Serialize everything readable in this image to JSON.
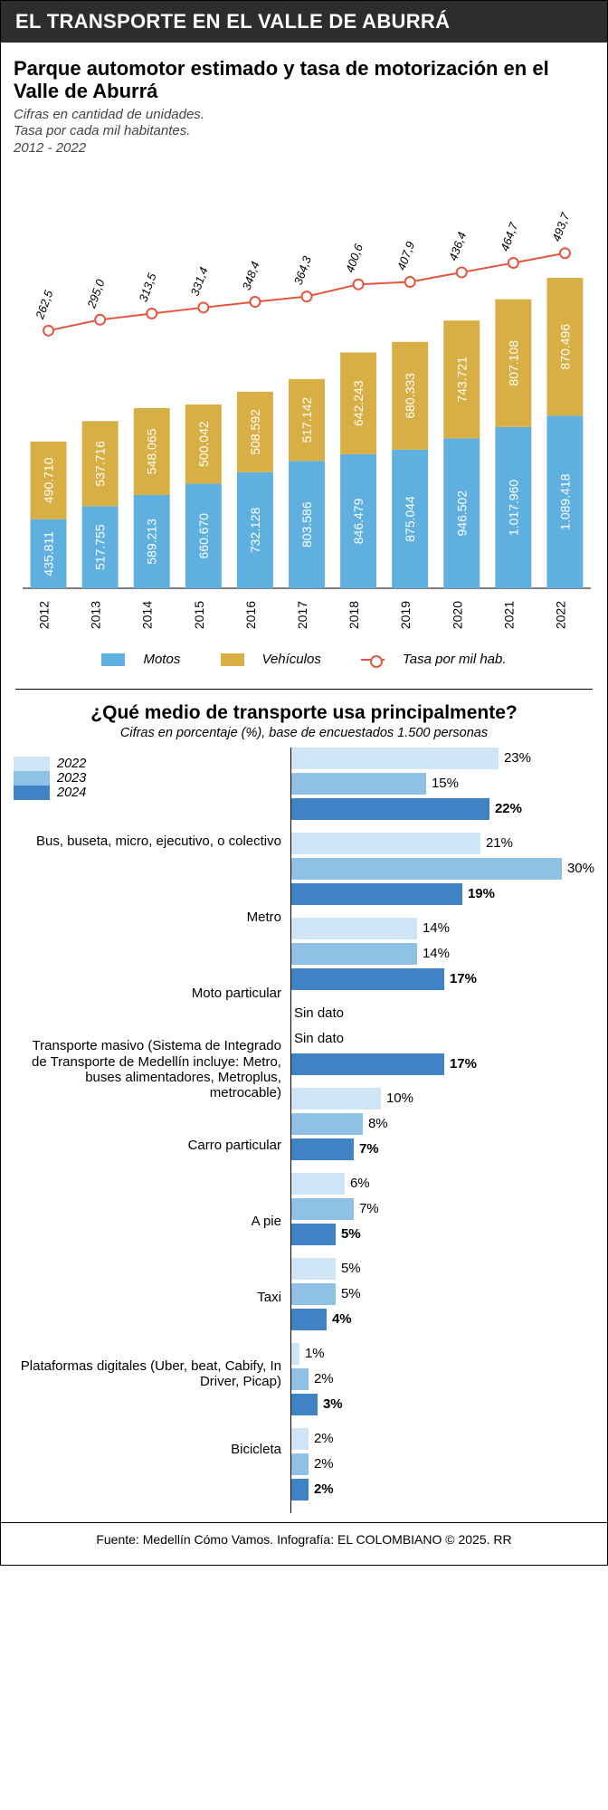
{
  "header": "EL TRANSPORTE EN EL VALLE DE ABURRÁ",
  "chart1": {
    "type": "stacked-bar-plus-line",
    "title": "Parque automotor estimado y tasa de motorización en el Valle de Aburrá",
    "subtitle": "Cifras en cantidad de unidades.\nTasa por cada mil habitantes.\n2012 - 2022",
    "years": [
      "2012",
      "2013",
      "2014",
      "2015",
      "2016",
      "2017",
      "2018",
      "2019",
      "2020",
      "2021",
      "2022"
    ],
    "motos": [
      435811,
      517755,
      589213,
      660670,
      732128,
      803586,
      846479,
      875044,
      946502,
      1017960,
      1089418
    ],
    "motos_label": [
      "435.811",
      "517.755",
      "589.213",
      "660.670",
      "732.128",
      "803.586",
      "846.479",
      "875.044",
      "946.502",
      "1.017.960",
      "1.089.418"
    ],
    "vehiculos": [
      490710,
      537716,
      548065,
      500042,
      508592,
      517142,
      642243,
      680333,
      743721,
      807108,
      870496
    ],
    "vehiculos_label": [
      "490.710",
      "537.716",
      "548.065",
      "500.042",
      "508.592",
      "517.142",
      "642.243",
      "680.333",
      "743.721",
      "807.108",
      "870.496"
    ],
    "tasa": [
      262.5,
      295.0,
      313.5,
      331.4,
      348.4,
      364.3,
      400.6,
      407.9,
      436.4,
      464.7,
      493.7
    ],
    "tasa_label": [
      "262,5",
      "295,0",
      "313,5",
      "331,4",
      "348,4",
      "364,3",
      "400,6",
      "407,9",
      "436,4",
      "464,7",
      "493,7"
    ],
    "y_max_total": 2000000,
    "tasa_max": 520,
    "colors": {
      "motos": "#5fb0df",
      "vehiculos": "#d8af45",
      "line": "#e8553e",
      "marker_fill": "#ffffff"
    },
    "legend": {
      "motos": "Motos",
      "vehiculos": "Vehículos",
      "line": "Tasa por mil hab."
    },
    "label_fontsize": 12,
    "axis_fontsize": 14
  },
  "chart2": {
    "type": "grouped-horizontal-bar",
    "title": "¿Qué medio de transporte usa principalmente?",
    "subtitle": "Cifras en porcentaje (%), base de encuestados 1.500 personas",
    "years": [
      "2022",
      "2023",
      "2024"
    ],
    "year_colors": [
      "#cfe5f5",
      "#8fc0e6",
      "#3f83c4"
    ],
    "x_max": 30,
    "categories": [
      {
        "label": "Bus, buseta, micro, ejecutivo, o colectivo",
        "values": [
          23,
          15,
          22
        ],
        "labels": [
          "23%",
          "15%",
          "22%"
        ]
      },
      {
        "label": "Metro",
        "values": [
          21,
          30,
          19
        ],
        "labels": [
          "21%",
          "30%",
          "19%"
        ]
      },
      {
        "label": "Moto particular",
        "values": [
          14,
          14,
          17
        ],
        "labels": [
          "14%",
          "14%",
          "17%"
        ]
      },
      {
        "label": "Transporte masivo (Sistema de Integrado de Transporte de Medellín incluye: Metro, buses alimentadores, Metroplus, metrocable)",
        "values": [
          null,
          null,
          17
        ],
        "labels": [
          "Sin dato",
          "Sin dato",
          "17%"
        ],
        "nodata": [
          true,
          true,
          false
        ]
      },
      {
        "label": "Carro particular",
        "values": [
          10,
          8,
          7
        ],
        "labels": [
          "10%",
          "8%",
          "7%"
        ]
      },
      {
        "label": "A pie",
        "values": [
          6,
          7,
          5
        ],
        "labels": [
          "6%",
          "7%",
          "5%"
        ]
      },
      {
        "label": "Taxi",
        "values": [
          5,
          5,
          4
        ],
        "labels": [
          "5%",
          "5%",
          "4%"
        ]
      },
      {
        "label": "Plataformas digitales (Uber, beat, Cabify, In Driver, Picap)",
        "values": [
          1,
          2,
          3
        ],
        "labels": [
          "1%",
          "2%",
          "3%"
        ]
      },
      {
        "label": "Bicicleta",
        "values": [
          2,
          2,
          2
        ],
        "labels": [
          "2%",
          "2%",
          "2%"
        ]
      }
    ]
  },
  "footer": "Fuente: Medellín Cómo Vamos. Infografía: EL COLOMBIANO © 2025. RR",
  "logo": "C."
}
